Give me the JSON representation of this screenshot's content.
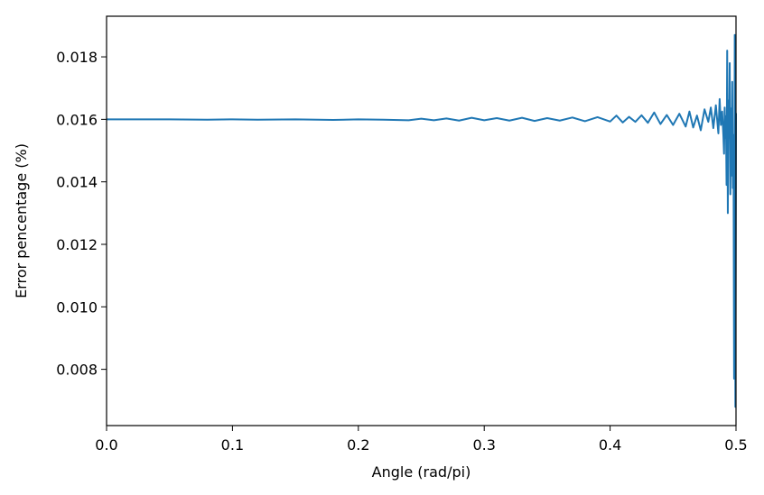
{
  "chart_data": {
    "type": "line",
    "title": "",
    "xlabel": "Angle (rad/pi)",
    "ylabel": "Error pencentage (%)",
    "xlim": [
      0.0,
      0.5
    ],
    "ylim": [
      0.0062,
      0.0193
    ],
    "grid": false,
    "x_ticks": [
      0.0,
      0.1,
      0.2,
      0.3,
      0.4,
      0.5
    ],
    "x_tick_labels": [
      "0.0",
      "0.1",
      "0.2",
      "0.3",
      "0.4",
      "0.5"
    ],
    "y_ticks": [
      0.008,
      0.01,
      0.012,
      0.014,
      0.016,
      0.018
    ],
    "y_tick_labels": [
      "0.008",
      "0.010",
      "0.012",
      "0.014",
      "0.016",
      "0.018"
    ],
    "line_color": "#1f77b4",
    "series": [
      {
        "x": [
          0.0,
          0.02,
          0.05,
          0.08,
          0.1,
          0.12,
          0.15,
          0.18,
          0.2,
          0.22,
          0.24,
          0.25,
          0.26,
          0.27,
          0.28,
          0.29,
          0.3,
          0.31,
          0.32,
          0.33,
          0.34,
          0.35,
          0.36,
          0.37,
          0.38,
          0.39,
          0.4,
          0.405,
          0.41,
          0.415,
          0.42,
          0.425,
          0.43,
          0.435,
          0.44,
          0.445,
          0.45,
          0.455,
          0.46,
          0.463,
          0.466,
          0.469,
          0.472,
          0.475,
          0.478,
          0.48,
          0.482,
          0.484,
          0.486,
          0.487,
          0.488,
          0.489,
          0.49,
          0.4905,
          0.491,
          0.4915,
          0.492,
          0.4925,
          0.493,
          0.4935,
          0.494,
          0.4945,
          0.495,
          0.4955,
          0.496,
          0.4965,
          0.497,
          0.4975,
          0.498,
          0.4985,
          0.499,
          0.4995,
          0.5
        ],
        "values": [
          0.016,
          0.016,
          0.016,
          0.01599,
          0.016,
          0.01599,
          0.016,
          0.01598,
          0.016,
          0.01599,
          0.01597,
          0.01602,
          0.01597,
          0.01603,
          0.01596,
          0.01605,
          0.01597,
          0.01604,
          0.01596,
          0.01605,
          0.01595,
          0.01604,
          0.01596,
          0.01606,
          0.01594,
          0.01607,
          0.01593,
          0.01612,
          0.0159,
          0.01608,
          0.01592,
          0.01613,
          0.01589,
          0.01622,
          0.01585,
          0.01614,
          0.01582,
          0.01618,
          0.01577,
          0.01625,
          0.01574,
          0.01612,
          0.01565,
          0.01632,
          0.01592,
          0.01638,
          0.01572,
          0.01645,
          0.01555,
          0.01665,
          0.01582,
          0.01625,
          0.01545,
          0.0149,
          0.01638,
          0.0154,
          0.0161,
          0.0139,
          0.0182,
          0.013,
          0.0166,
          0.0154,
          0.0178,
          0.0136,
          0.01635,
          0.0142,
          0.0172,
          0.0138,
          0.0155,
          0.0077,
          0.0187,
          0.0068,
          0.0162
        ]
      }
    ]
  }
}
